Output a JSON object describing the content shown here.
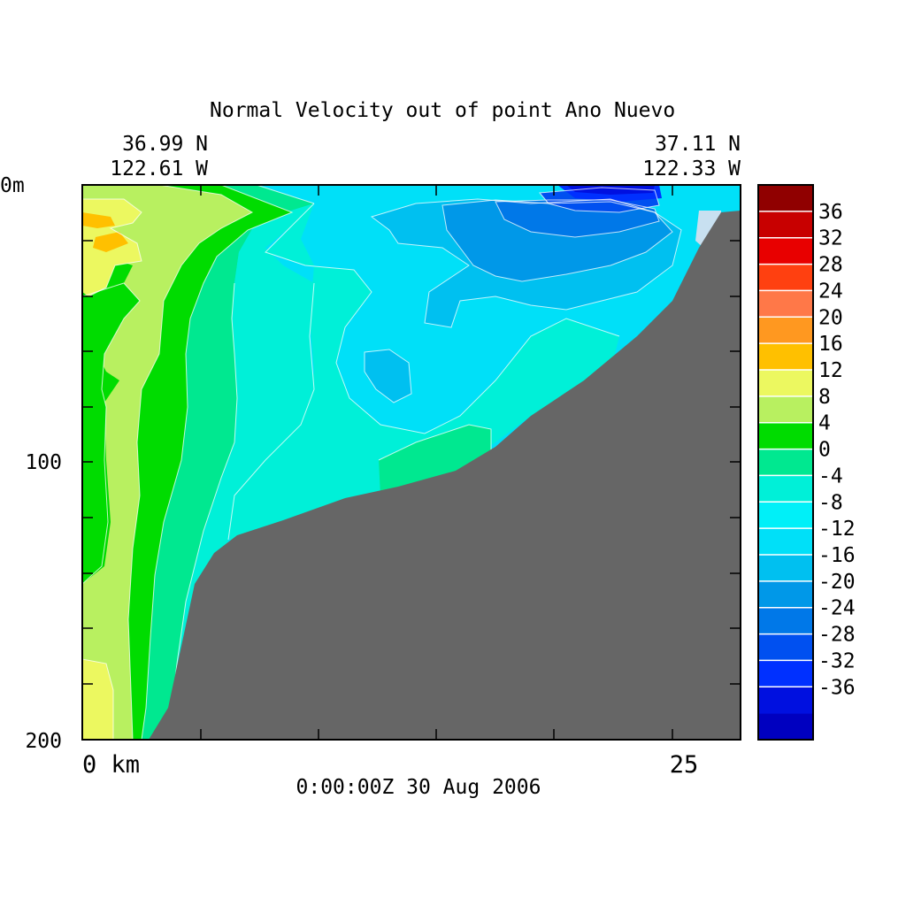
{
  "chart_data": {
    "type": "contour",
    "title": "Normal Velocity out of point Ano Nuevo",
    "left_end": {
      "lat": "36.99 N",
      "lon": "122.61 W"
    },
    "right_end": {
      "lat": "37.11 N",
      "lon": "122.33 W"
    },
    "timestamp": "0:00:00Z  30 Aug 2006",
    "x_axis": {
      "start_label": "0 km",
      "end_label": "25",
      "range": [
        0,
        28
      ],
      "end_label_value": 25
    },
    "y_axis": {
      "tick_labels": [
        "0m",
        "100",
        "200"
      ],
      "range": [
        0,
        200
      ],
      "inverted": true,
      "units": "m"
    },
    "colorbar": {
      "levels": [
        -40,
        -36,
        -32,
        -28,
        -24,
        -20,
        -16,
        -12,
        -8,
        -4,
        0,
        4,
        8,
        12,
        16,
        20,
        24,
        28,
        32,
        36,
        40
      ],
      "tick_labels": [
        "36",
        "32",
        "28",
        "24",
        "20",
        "16",
        "12",
        "8",
        "4",
        "0",
        "-4",
        "-8",
        "-12",
        "-16",
        "-20",
        "-24",
        "-28",
        "-32",
        "-36"
      ],
      "colors": [
        "#0000c0",
        "#0010e0",
        "#0030ff",
        "#0050f0",
        "#0078e8",
        "#0098e8",
        "#00c0f0",
        "#00e0f8",
        "#00f0f8",
        "#00f0d8",
        "#00e890",
        "#00dc00",
        "#b8f060",
        "#ecf860",
        "#ffc000",
        "#ff9820",
        "#ff7848",
        "#ff4010",
        "#e80000",
        "#c80000",
        "#900000"
      ]
    },
    "bathymetry_color": "#666666"
  }
}
